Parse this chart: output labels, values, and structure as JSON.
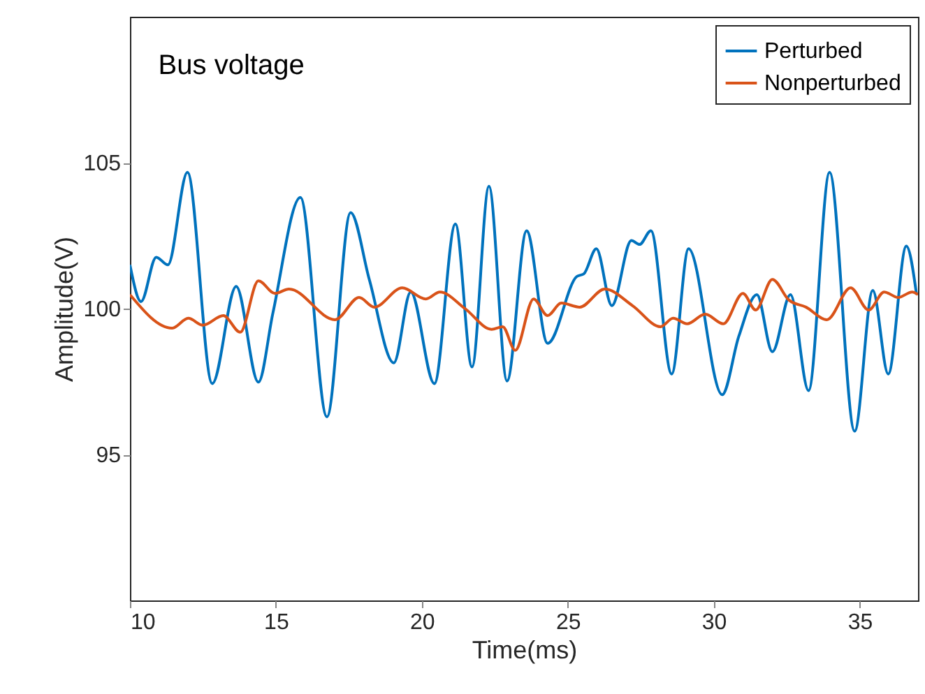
{
  "chart_data": {
    "type": "line",
    "title": "Bus voltage",
    "xlabel": "Time(ms)",
    "ylabel": "Amplitude(V)",
    "xlim": [
      10,
      37
    ],
    "ylim": [
      90,
      110
    ],
    "xticks": [
      10,
      15,
      20,
      25,
      30,
      35
    ],
    "yticks": [
      95,
      100,
      105
    ],
    "grid": false,
    "legend": "top right",
    "marker": "none",
    "line_style": "solid",
    "series": [
      {
        "name": "Perturbed",
        "color": "#0072bd",
        "x": [
          10,
          10.38,
          10.9,
          11.3,
          11.97,
          12.82,
          13.64,
          14.4,
          14.9,
          15.84,
          16.75,
          17.56,
          18.2,
          19.04,
          19.62,
          20.43,
          21.15,
          21.72,
          22.3,
          22.92,
          23.59,
          24.31,
          25.31,
          25.55,
          25.98,
          26.51,
          27.18,
          27.46,
          27.85,
          28.56,
          29.14,
          30.29,
          30.86,
          31.48,
          32.01,
          32.63,
          33.25,
          33.97,
          34.83,
          35.45,
          35.98,
          36.6,
          36.95
        ],
        "values": [
          101.5,
          100.24,
          101.76,
          101.5,
          104.67,
          97.43,
          100.76,
          97.48,
          99.86,
          103.81,
          96.29,
          103.29,
          101.0,
          98.14,
          100.57,
          97.43,
          102.9,
          98.0,
          104.19,
          97.52,
          102.67,
          98.81,
          101.1,
          101.19,
          102.05,
          100.1,
          102.33,
          102.2,
          102.67,
          97.76,
          102.05,
          97.05,
          99.05,
          100.48,
          98.52,
          100.48,
          97.19,
          104.67,
          95.8,
          100.62,
          97.76,
          102.14,
          100.48
        ]
      },
      {
        "name": "Nonperturbed",
        "color": "#d95319",
        "x": [
          10,
          11.44,
          12.0,
          12.5,
          13.2,
          13.78,
          14.4,
          14.97,
          15.45,
          17.03,
          17.85,
          18.37,
          19.33,
          20.14,
          20.62,
          21.48,
          22.39,
          22.77,
          23.2,
          23.83,
          24.31,
          24.78,
          25.41,
          26.27,
          27.22,
          28.18,
          28.61,
          29.09,
          29.71,
          30.33,
          31.0,
          31.44,
          32.01,
          32.58,
          33.16,
          33.88,
          34.69,
          35.31,
          35.84,
          36.32,
          36.8,
          37
        ],
        "values": [
          100.48,
          99.33,
          99.67,
          99.43,
          99.76,
          99.19,
          100.95,
          100.52,
          100.67,
          99.62,
          100.38,
          100.05,
          100.71,
          100.33,
          100.57,
          100.0,
          99.29,
          99.38,
          98.57,
          100.33,
          99.76,
          100.19,
          100.05,
          100.67,
          100.1,
          99.38,
          99.67,
          99.48,
          99.81,
          99.48,
          100.52,
          99.95,
          101.0,
          100.29,
          100.05,
          99.62,
          100.71,
          99.95,
          100.57,
          100.38,
          100.57,
          100.48
        ]
      }
    ]
  }
}
